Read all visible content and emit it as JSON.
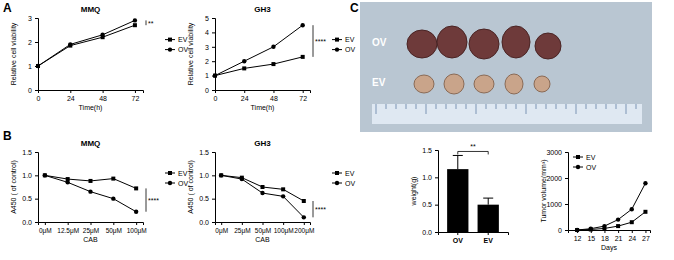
{
  "panels": [
    {
      "label": "A"
    },
    {
      "label": "B"
    },
    {
      "label": "C"
    }
  ],
  "photo": {
    "labels": [
      "OV",
      "EV"
    ]
  },
  "chart_data": [
    {
      "type": "line",
      "title": "MMQ",
      "x_label": "Time(h)",
      "y_label": "Relative cell viability",
      "x": [
        0,
        24,
        48,
        72
      ],
      "xlim": [
        0,
        78
      ],
      "xticks": [
        0,
        24,
        48,
        72
      ],
      "ylim": [
        0,
        3
      ],
      "yticks": [
        0,
        1,
        2,
        3
      ],
      "legend": "right",
      "series": [
        {
          "name": "EV",
          "color": "#000000",
          "marker": "square",
          "values": [
            1,
            1.85,
            2.2,
            2.7
          ]
        },
        {
          "name": "OV",
          "color": "#000000",
          "marker": "circle",
          "values": [
            1,
            1.9,
            2.3,
            2.9
          ]
        }
      ],
      "annotations": [
        {
          "text": "**"
        }
      ]
    },
    {
      "type": "line",
      "title": "GH3",
      "x_label": "Time(h)",
      "y_label": "Relative cell viability",
      "x": [
        0,
        24,
        48,
        72
      ],
      "xlim": [
        0,
        78
      ],
      "xticks": [
        0,
        24,
        48,
        72
      ],
      "ylim": [
        0,
        5
      ],
      "yticks": [
        0,
        1,
        2,
        3,
        4,
        5
      ],
      "legend": "right",
      "series": [
        {
          "name": "EV",
          "color": "#000000",
          "marker": "square",
          "values": [
            1,
            1.5,
            1.8,
            2.3
          ]
        },
        {
          "name": "OV",
          "color": "#000000",
          "marker": "circle",
          "values": [
            1,
            2.0,
            3.0,
            4.5
          ]
        }
      ],
      "annotations": [
        {
          "text": "****"
        }
      ]
    },
    {
      "type": "line",
      "title": "MMQ",
      "x_label": "CAB",
      "y_label": "A450 ( of control)",
      "categories": [
        "0μM",
        "12.5μM",
        "25μM",
        "50μM",
        "100μM"
      ],
      "ylim": [
        0,
        1.5
      ],
      "yticks": [
        {
          "value": 0,
          "label": "0.0"
        },
        {
          "value": 0.5,
          "label": "0.5"
        },
        {
          "value": 1,
          "label": "1.0"
        },
        {
          "value": 1.5,
          "label": "1.5"
        }
      ],
      "legend": "right",
      "series": [
        {
          "name": "EV",
          "color": "#000000",
          "marker": "square",
          "values": [
            1.0,
            0.92,
            0.88,
            0.93,
            0.72
          ]
        },
        {
          "name": "OV",
          "color": "#000000",
          "marker": "circle",
          "values": [
            1.0,
            0.85,
            0.65,
            0.5,
            0.22
          ]
        }
      ],
      "annotations": [
        {
          "text": "****"
        }
      ]
    },
    {
      "type": "line",
      "title": "GH3",
      "x_label": "CAB",
      "y_label": "A450 ( of control)",
      "categories": [
        "0μM",
        "25μM",
        "50μM",
        "100μM",
        "200μM"
      ],
      "ylim": [
        0,
        1.5
      ],
      "yticks": [
        {
          "value": 0,
          "label": "0.0"
        },
        {
          "value": 0.5,
          "label": "0.5"
        },
        {
          "value": 1,
          "label": "1.0"
        },
        {
          "value": 1.5,
          "label": "1.5"
        }
      ],
      "legend": "right",
      "series": [
        {
          "name": "EV",
          "color": "#000000",
          "marker": "square",
          "values": [
            1.0,
            0.95,
            0.75,
            0.7,
            0.45
          ]
        },
        {
          "name": "OV",
          "color": "#000000",
          "marker": "circle",
          "values": [
            1.0,
            0.92,
            0.62,
            0.55,
            0.1
          ]
        }
      ],
      "annotations": [
        {
          "text": "****"
        }
      ]
    },
    {
      "type": "bar",
      "y_label": "weight(g)",
      "categories": [
        "OV",
        "EV"
      ],
      "values": [
        1.15,
        0.5
      ],
      "errors": [
        0.25,
        0.12
      ],
      "color": "#000000",
      "ylim": [
        0,
        1.5
      ],
      "yticks": [
        {
          "value": 0,
          "label": "0.0"
        },
        {
          "value": 0.5,
          "label": "0.5"
        },
        {
          "value": 1,
          "label": "1.0"
        },
        {
          "value": 1.5,
          "label": "1.5"
        }
      ],
      "annotations": [
        {
          "text": "**"
        }
      ]
    },
    {
      "type": "line",
      "x_label": "Days",
      "y_label": "Tumor volume(mm³)",
      "x": [
        12,
        15,
        18,
        21,
        24,
        27
      ],
      "xlim": [
        10,
        28
      ],
      "xticks": [
        12,
        15,
        18,
        21,
        24,
        27
      ],
      "ylim": [
        0,
        3000
      ],
      "yticks": [
        0,
        1000,
        2000,
        3000
      ],
      "legend": "upper left",
      "series": [
        {
          "name": "EV",
          "color": "#000000",
          "marker": "square",
          "values": [
            0,
            20,
            60,
            150,
            300,
            700
          ]
        },
        {
          "name": "OV",
          "color": "#000000",
          "marker": "circle",
          "values": [
            0,
            50,
            150,
            400,
            800,
            1800
          ]
        }
      ]
    }
  ]
}
